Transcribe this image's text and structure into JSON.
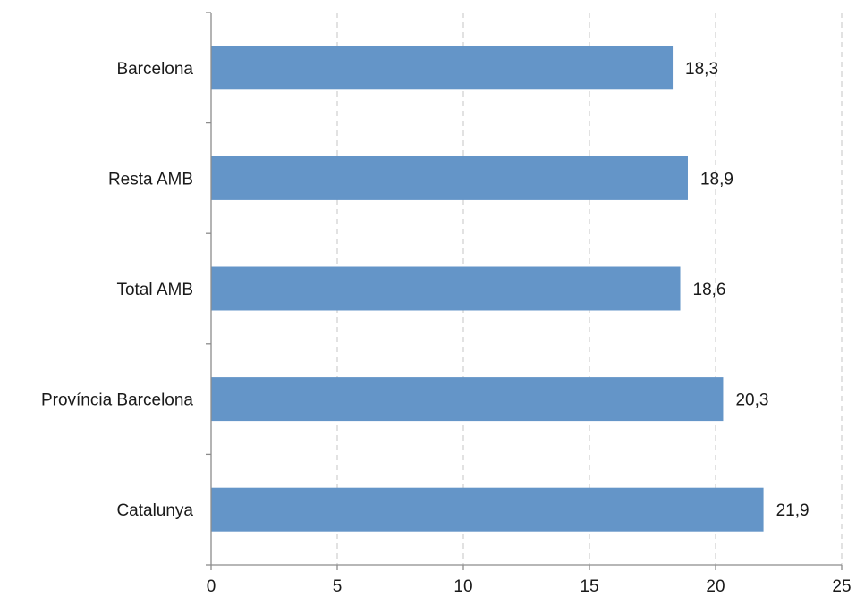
{
  "chart_data": {
    "type": "bar",
    "orientation": "horizontal",
    "categories": [
      "Barcelona",
      "Resta AMB",
      "Total AMB",
      "Província Barcelona",
      "Catalunya"
    ],
    "values": [
      18.3,
      18.9,
      18.6,
      20.3,
      21.9
    ],
    "value_labels": [
      "18,3",
      "18,9",
      "18,6",
      "20,3",
      "21,9"
    ],
    "xlim": [
      0,
      25
    ],
    "xticks": [
      0,
      5,
      10,
      15,
      20,
      25
    ],
    "xtick_labels": [
      "0",
      "5",
      "10",
      "15",
      "20",
      "25"
    ],
    "grid": "vertical dashed",
    "bar_color": "#6495c8",
    "title": "",
    "xlabel": "",
    "ylabel": ""
  }
}
